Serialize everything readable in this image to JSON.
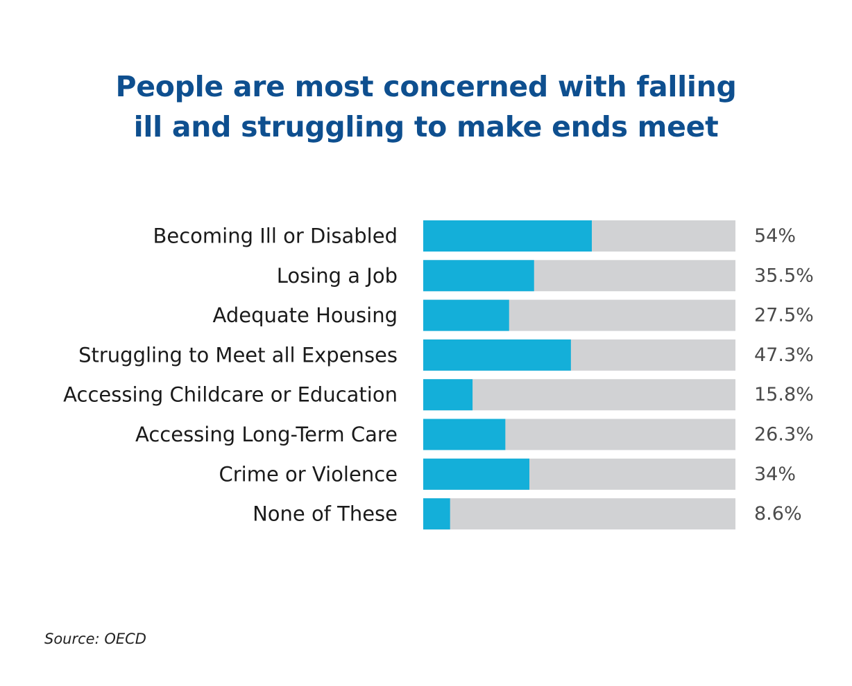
{
  "chart_data": {
    "type": "bar",
    "orientation": "horizontal",
    "title_lines": [
      "People are most concerned with falling",
      "ill and struggling to make ends meet"
    ],
    "categories": [
      "Becoming Ill or Disabled",
      "Losing a Job",
      "Adequate Housing",
      "Struggling to Meet all Expenses",
      "Accessing Childcare or Education",
      "Accessing Long-Term Care",
      "Crime or Violence",
      "None of These"
    ],
    "values": [
      54,
      35.5,
      27.5,
      47.3,
      15.8,
      26.3,
      34,
      8.6
    ],
    "value_labels": [
      "54%",
      "35.5%",
      "27.5%",
      "47.3%",
      "15.8%",
      "26.3%",
      "34%",
      "8.6%"
    ],
    "xlim": [
      0,
      100
    ],
    "xlabel": "",
    "ylabel": "",
    "grid": false,
    "legend": "none"
  },
  "source": "Source: OECD",
  "colors": {
    "title": "#0e4f8f",
    "bar_fill": "#14afd9",
    "bar_track": "#d1d2d4"
  }
}
